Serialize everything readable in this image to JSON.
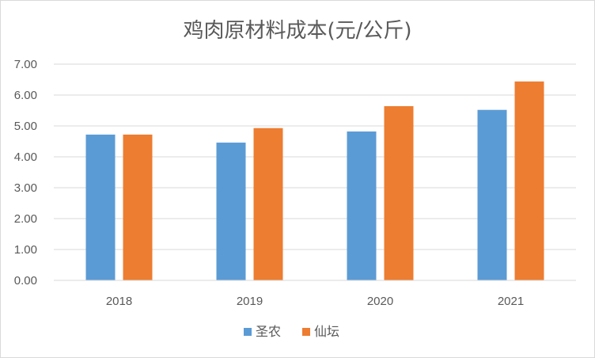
{
  "chart_data": {
    "type": "bar",
    "title": "鸡肉原材料成本(元/公斤)",
    "xlabel": "",
    "ylabel": "",
    "categories": [
      "2018",
      "2019",
      "2020",
      "2021"
    ],
    "series": [
      {
        "name": "圣农",
        "values": [
          4.72,
          4.46,
          4.82,
          5.52
        ],
        "color": "#5b9bd5"
      },
      {
        "name": "仙坛",
        "values": [
          4.72,
          4.93,
          5.64,
          6.44
        ],
        "color": "#ed7d31"
      }
    ],
    "ylim": [
      0,
      7
    ],
    "yticks": [
      "0.00",
      "1.00",
      "2.00",
      "3.00",
      "4.00",
      "5.00",
      "6.00",
      "7.00"
    ],
    "grid": true,
    "legend": "bottom"
  }
}
